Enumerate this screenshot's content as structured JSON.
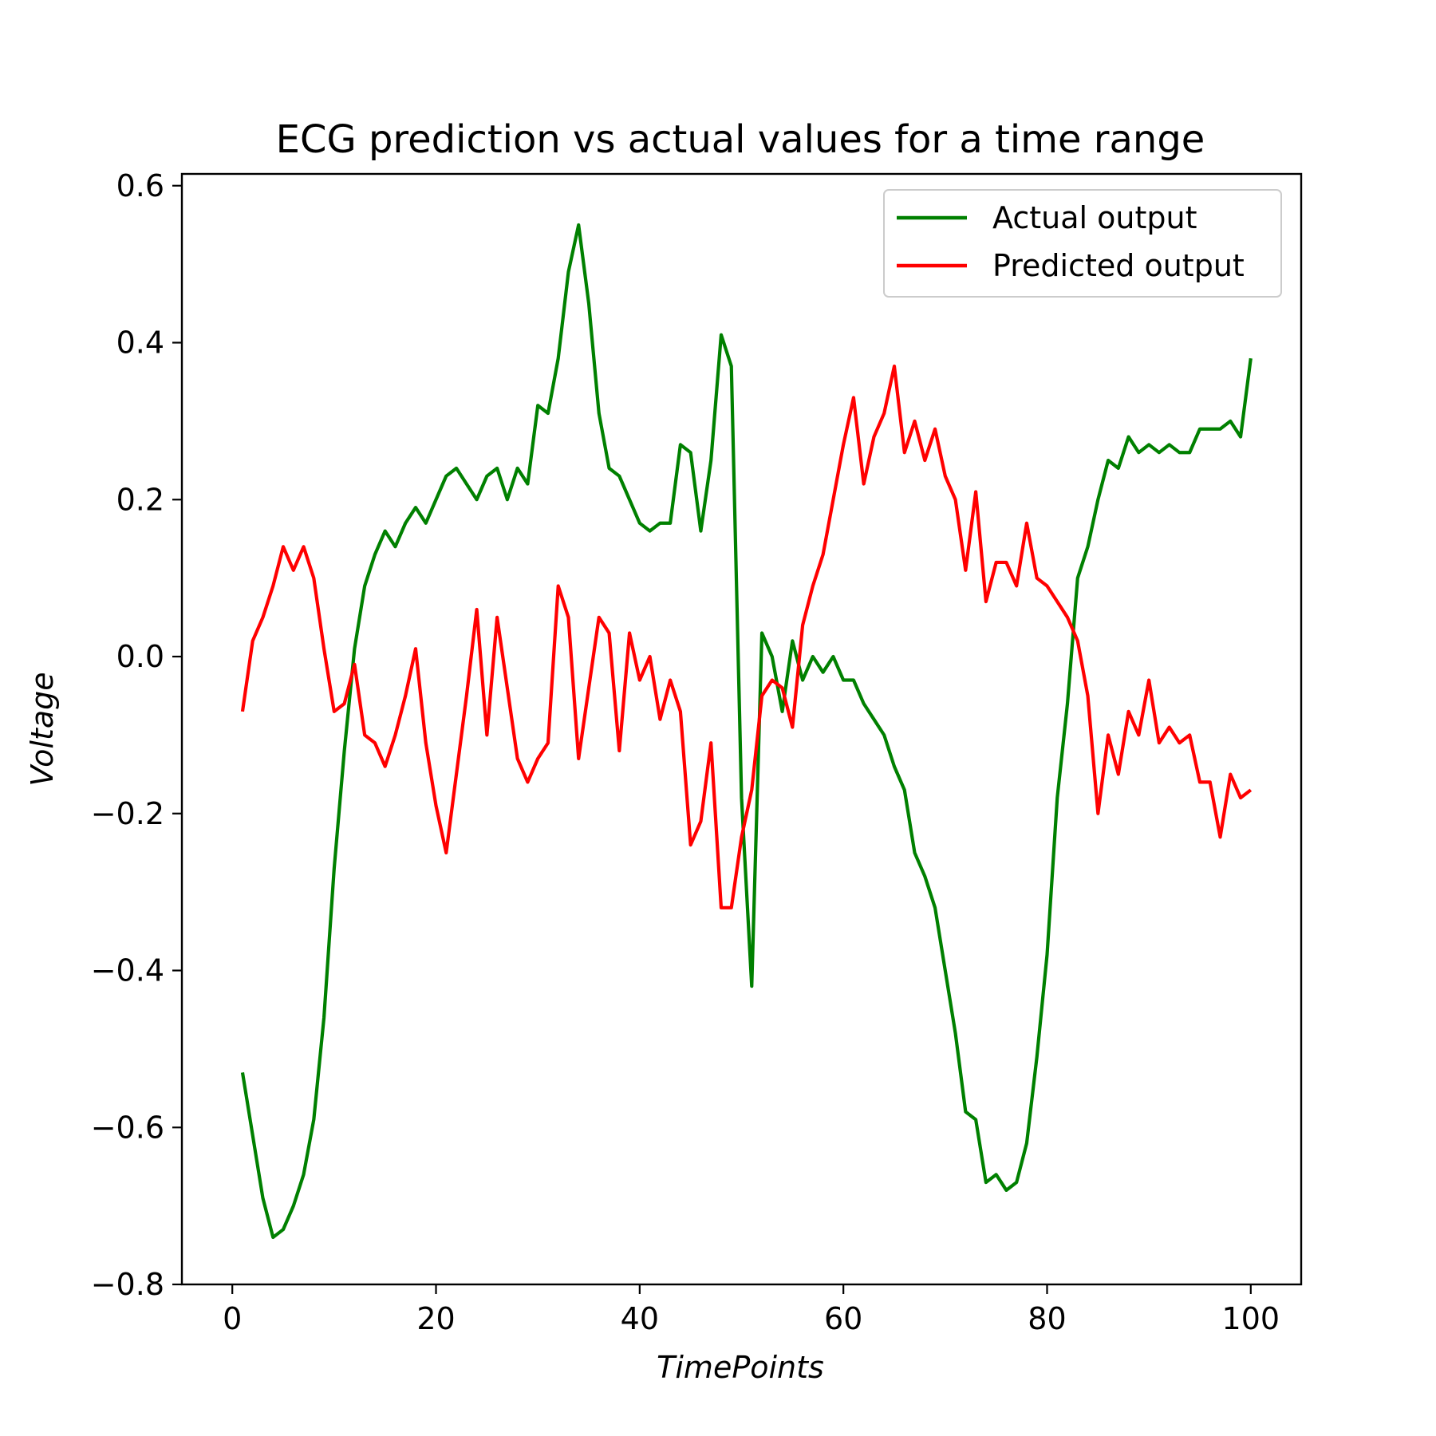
{
  "chart_data": {
    "type": "line",
    "title": "ECG prediction vs actual values for a time range",
    "xlabel": "TimePoints",
    "ylabel": "Voltage",
    "xlim": [
      -4.95,
      104.95
    ],
    "ylim": [
      -0.8,
      0.615
    ],
    "xticks": [
      0,
      20,
      40,
      60,
      80,
      100
    ],
    "yticks": [
      -0.8,
      -0.6,
      -0.4,
      -0.2,
      0.0,
      0.2,
      0.4,
      0.6
    ],
    "xtick_labels": [
      "0",
      "20",
      "40",
      "60",
      "80",
      "100"
    ],
    "ytick_labels": [
      "−0.8",
      "−0.6",
      "−0.4",
      "−0.2",
      "0.0",
      "0.2",
      "0.4",
      "0.6"
    ],
    "grid": false,
    "legend": "top-right",
    "x": [
      1,
      2,
      3,
      4,
      5,
      6,
      7,
      8,
      9,
      10,
      11,
      12,
      13,
      14,
      15,
      16,
      17,
      18,
      19,
      20,
      21,
      22,
      23,
      24,
      25,
      26,
      27,
      28,
      29,
      30,
      31,
      32,
      33,
      34,
      35,
      36,
      37,
      38,
      39,
      40,
      41,
      42,
      43,
      44,
      45,
      46,
      47,
      48,
      49,
      50,
      51,
      52,
      53,
      54,
      55,
      56,
      57,
      58,
      59,
      60,
      61,
      62,
      63,
      64,
      65,
      66,
      67,
      68,
      69,
      70,
      71,
      72,
      73,
      74,
      75,
      76,
      77,
      78,
      79,
      80,
      81,
      82,
      83,
      84,
      85,
      86,
      87,
      88,
      89,
      90,
      91,
      92,
      93,
      94,
      95,
      96,
      97,
      98,
      99,
      100
    ],
    "series": [
      {
        "name": "Actual output",
        "color": "#008000",
        "values": [
          -0.53,
          -0.61,
          -0.69,
          -0.74,
          -0.73,
          -0.7,
          -0.66,
          -0.59,
          -0.46,
          -0.27,
          -0.12,
          0.01,
          0.09,
          0.13,
          0.16,
          0.14,
          0.17,
          0.19,
          0.17,
          0.2,
          0.23,
          0.24,
          0.22,
          0.2,
          0.23,
          0.24,
          0.2,
          0.24,
          0.22,
          0.32,
          0.31,
          0.38,
          0.49,
          0.55,
          0.45,
          0.31,
          0.24,
          0.23,
          0.2,
          0.17,
          0.16,
          0.17,
          0.17,
          0.27,
          0.26,
          0.16,
          0.25,
          0.41,
          0.37,
          -0.18,
          -0.42,
          0.03,
          0.0,
          -0.07,
          0.02,
          -0.03,
          0.0,
          -0.02,
          0.0,
          -0.03,
          -0.03,
          -0.06,
          -0.08,
          -0.1,
          -0.14,
          -0.17,
          -0.25,
          -0.28,
          -0.32,
          -0.4,
          -0.48,
          -0.58,
          -0.59,
          -0.67,
          -0.66,
          -0.68,
          -0.67,
          -0.62,
          -0.51,
          -0.38,
          -0.18,
          -0.06,
          0.1,
          0.14,
          0.2,
          0.25,
          0.24,
          0.28,
          0.26,
          0.27,
          0.26,
          0.27,
          0.26,
          0.26,
          0.29,
          0.29,
          0.29,
          0.3,
          0.28,
          0.38
        ]
      },
      {
        "name": "Predicted output",
        "color": "#ff0000",
        "values": [
          -0.07,
          0.02,
          0.05,
          0.09,
          0.14,
          0.11,
          0.14,
          0.1,
          0.01,
          -0.07,
          -0.06,
          -0.01,
          -0.1,
          -0.11,
          -0.14,
          -0.1,
          -0.05,
          0.01,
          -0.11,
          -0.19,
          -0.25,
          -0.15,
          -0.05,
          0.06,
          -0.1,
          0.05,
          -0.04,
          -0.13,
          -0.16,
          -0.13,
          -0.11,
          0.09,
          0.05,
          -0.13,
          -0.04,
          0.05,
          0.03,
          -0.12,
          0.03,
          -0.03,
          0.0,
          -0.08,
          -0.03,
          -0.07,
          -0.24,
          -0.21,
          -0.11,
          -0.32,
          -0.32,
          -0.23,
          -0.17,
          -0.05,
          -0.03,
          -0.04,
          -0.09,
          0.04,
          0.09,
          0.13,
          0.2,
          0.27,
          0.33,
          0.22,
          0.28,
          0.31,
          0.37,
          0.26,
          0.3,
          0.25,
          0.29,
          0.23,
          0.2,
          0.11,
          0.21,
          0.07,
          0.12,
          0.12,
          0.09,
          0.17,
          0.1,
          0.09,
          0.07,
          0.05,
          0.02,
          -0.05,
          -0.2,
          -0.1,
          -0.15,
          -0.07,
          -0.1,
          -0.03,
          -0.11,
          -0.09,
          -0.11,
          -0.1,
          -0.16,
          -0.16,
          -0.23,
          -0.15,
          -0.18,
          -0.17
        ]
      }
    ]
  }
}
